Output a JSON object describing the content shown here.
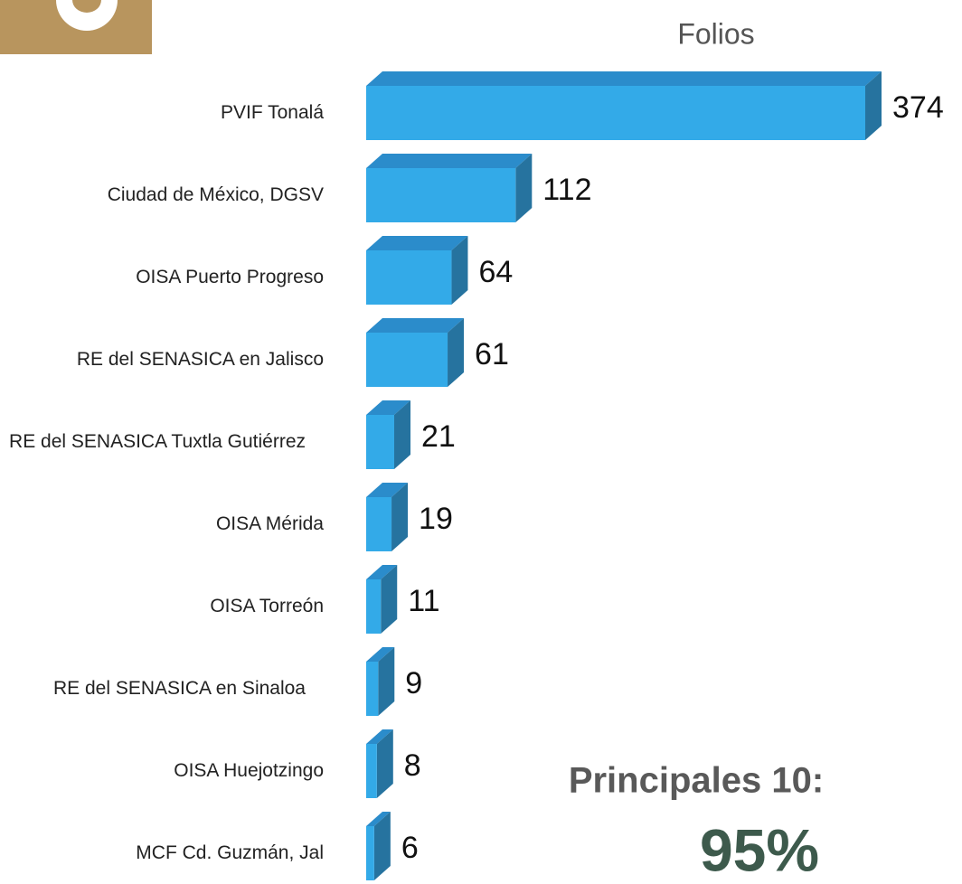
{
  "chart_data": {
    "type": "bar3d_horizontal",
    "title": "Folios",
    "categories": [
      "PVIF Tonalá",
      "Ciudad de México, DGSV",
      "OISA Puerto Progreso",
      "RE del SENASICA en Jalisco",
      "RE del SENASICA Tuxtla Gutiérrez",
      "OISA Mérida",
      "OISA Torreón",
      "RE del SENASICA en Sinaloa",
      "OISA Huejotzingo",
      "MCF Cd. Guzmán, Jal"
    ],
    "values": [
      374,
      112,
      64,
      61,
      21,
      19,
      11,
      9,
      8,
      6
    ],
    "color": "#33aae8",
    "xlim": [
      0,
      374
    ],
    "annotations": [
      "Principales 10:",
      "95%"
    ]
  }
}
